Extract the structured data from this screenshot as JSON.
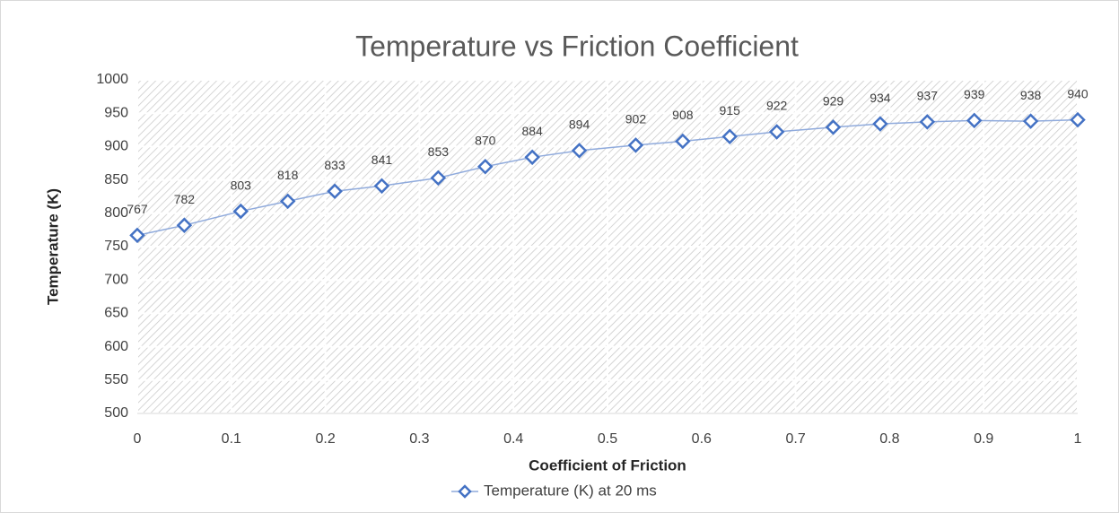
{
  "chart_data": {
    "type": "line",
    "title": "Temperature vs Friction Coefficient",
    "x_label": "Coefficient of Friction",
    "y_label": "Temperature (K)",
    "x": [
      0,
      0.05,
      0.11,
      0.16,
      0.21,
      0.26,
      0.32,
      0.37,
      0.42,
      0.47,
      0.53,
      0.58,
      0.63,
      0.68,
      0.74,
      0.79,
      0.84,
      0.89,
      0.95,
      1
    ],
    "series": [
      {
        "name": "Temperature (K) at 20 ms",
        "color": "#4472c4",
        "values": [
          767,
          782,
          803,
          818,
          833,
          841,
          853,
          870,
          884,
          894,
          902,
          908,
          915,
          922,
          929,
          934,
          937,
          939,
          938,
          940
        ]
      }
    ],
    "xlim": [
      0,
      1
    ],
    "xticks": [
      0,
      0.1,
      0.2,
      0.3,
      0.4,
      0.5,
      0.6,
      0.7,
      0.8,
      0.9,
      1
    ],
    "ylim": [
      500,
      1000
    ],
    "yticks": [
      500,
      550,
      600,
      650,
      700,
      750,
      800,
      850,
      900,
      950,
      1000
    ],
    "grid": true,
    "legend": "bottom"
  }
}
